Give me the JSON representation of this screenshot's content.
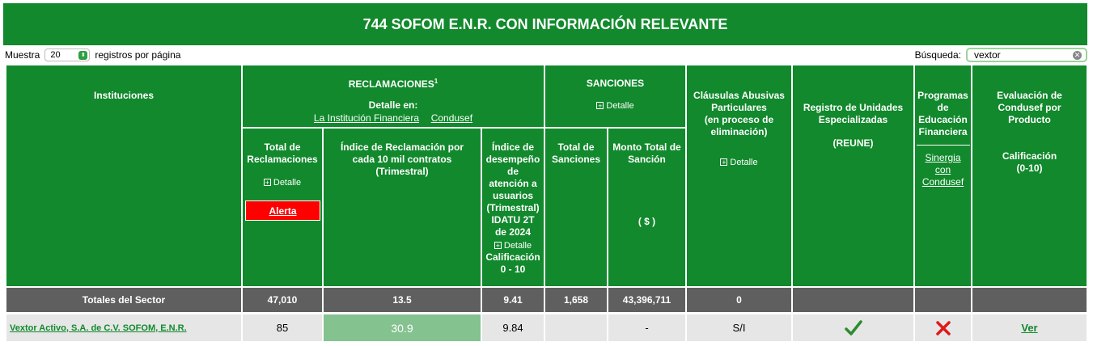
{
  "page_title": "744 SOFOM E.N.R. CON INFORMACIÓN RELEVANTE",
  "controls": {
    "show_label": "Muestra",
    "page_size": "20",
    "per_page_label": "registros por página",
    "search_label": "Búsqueda:",
    "search_value": "vextor"
  },
  "header": {
    "instituciones": "Instituciones",
    "reclamaciones": "RECLAMACIONES",
    "reclamaciones_sup": "1",
    "detalle_en": "Detalle en:",
    "link_institucion": "La Institución Financiera",
    "link_condusef": "Condusef",
    "total_reclamaciones": "Total de Reclamaciones",
    "detalle": "Detalle",
    "alerta": "Alerta",
    "indice_reclamacion": "Índice de Reclamación por cada 10 mil contratos (Trimestral)",
    "idatu_lines": [
      "Índice de",
      "desempeño",
      "de",
      "atención a",
      "usuarios",
      "(Trimestral)",
      "IDATU 2T",
      "de 2024"
    ],
    "calificacion_line1": "Calificación",
    "calificacion_line2": "0 - 10",
    "sanciones": "SANCIONES",
    "total_sanciones": "Total de Sanciones",
    "monto_total": "Monto Total de Sanción",
    "monto_unit": "( $ )",
    "clausulas_lines": [
      "Cláusulas Abusivas",
      "Particulares",
      "(en proceso de",
      "eliminación)"
    ],
    "registro_lines": [
      "Registro de Unidades",
      "Especializadas"
    ],
    "reune": "(REUNE)",
    "programas_lines": [
      "Programas",
      "de",
      "Educación",
      "Financiera"
    ],
    "sinergia_lines": [
      "Sinergia",
      "con",
      "Condusef"
    ],
    "evaluacion_lines": [
      "Evaluación de",
      "Condusef por",
      "Producto"
    ],
    "calificacion_eval_line1": "Calificación",
    "calificacion_eval_line2": "(0-10)"
  },
  "totals": {
    "label": "Totales del Sector",
    "total_reclamaciones": "47,010",
    "indice": "13.5",
    "idatu": "9.41",
    "total_sanciones": "1,658",
    "monto": "43,396,711",
    "clausulas": "0"
  },
  "rows": [
    {
      "institucion": "Vextor Activo, S.A. de C.V. SOFOM, E.N.R.",
      "total_reclamaciones": "85",
      "indice": "30.9",
      "idatu": "9.84",
      "total_sanciones": "",
      "monto": "-",
      "clausulas": "S/I",
      "reune": "check-icon",
      "programas": "cross-icon",
      "evaluacion": "Ver"
    }
  ],
  "colors": {
    "green": "#11892c",
    "gray": "#5f5f5f",
    "alert_red": "#ff0000",
    "light_green": "#84c28f",
    "row_bg": "#e6e6e6"
  }
}
